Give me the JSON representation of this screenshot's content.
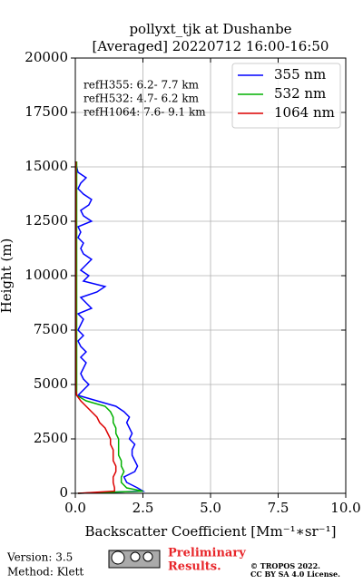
{
  "chart_data": {
    "type": "profile",
    "title": "pollyxt_tjk at Dushanbe",
    "subtitle": "[Averaged] 20220712 16:00-16:50",
    "xlabel": "Backscatter Coefficient [Mm⁻¹∗sr⁻¹]",
    "ylabel": "Height (m)",
    "annotations": [
      "refH355:  6.2- 7.7 km",
      "refH532:  4.7- 6.2 km",
      "refH1064:  7.6- 9.1 km"
    ],
    "xlim": [
      0,
      10
    ],
    "ylim": [
      0,
      20000
    ],
    "xticks": [
      {
        "value": 0,
        "label": "0.0"
      },
      2.5,
      {
        "value": 5,
        "label": "5.0"
      },
      7.5,
      {
        "value": 10,
        "label": "10.0"
      }
    ],
    "yticks": [
      0,
      2500,
      5000,
      7500,
      10000,
      12500,
      15000,
      17500,
      20000
    ],
    "grid": true,
    "legend": "upper right",
    "y": [
      0,
      100,
      250,
      500,
      750,
      1000,
      1250,
      1500,
      1750,
      2000,
      2250,
      2500,
      2750,
      3000,
      3250,
      3500,
      3750,
      4000,
      4250,
      4500,
      4750,
      5000,
      5250,
      5500,
      5750,
      6000,
      6250,
      6500,
      6750,
      7000,
      7250,
      7500,
      7750,
      8000,
      8250,
      8500,
      8750,
      9000,
      9250,
      9500,
      9750,
      10000,
      10250,
      10500,
      10750,
      11000,
      11250,
      11500,
      11750,
      12000,
      12250,
      12500,
      12750,
      13000,
      13250,
      13500,
      13750,
      14000,
      14250,
      14500,
      14750,
      15000,
      15250
    ],
    "series": [
      {
        "name": "355 nm",
        "color": "#0000ff",
        "values": [
          0.1,
          2.5,
          2.3,
          1.9,
          1.8,
          2.2,
          2.3,
          2.2,
          2.1,
          2.1,
          2.2,
          2.0,
          2.1,
          2.0,
          1.9,
          2.0,
          1.8,
          1.5,
          0.8,
          0.1,
          0.3,
          0.5,
          0.3,
          0.2,
          0.3,
          0.4,
          0.2,
          0.4,
          0.2,
          0.1,
          0.3,
          0.1,
          0.2,
          0.3,
          0.1,
          0.6,
          0.4,
          0.2,
          0.8,
          1.1,
          0.3,
          0.5,
          0.2,
          0.4,
          0.6,
          0.3,
          0.2,
          0.3,
          0.1,
          0.2,
          0.1,
          0.6,
          0.3,
          0.2,
          0.5,
          0.6,
          0.3,
          0.1,
          0.2,
          0.4,
          0.1,
          0.05,
          0
        ]
      },
      {
        "name": "532 nm",
        "color": "#00b000",
        "values": [
          0.1,
          2.5,
          1.9,
          1.7,
          1.7,
          1.8,
          1.7,
          1.7,
          1.6,
          1.6,
          1.6,
          1.6,
          1.5,
          1.5,
          1.4,
          1.4,
          1.3,
          1.1,
          0.4,
          0.05,
          0.05,
          0.05,
          0.05,
          0.05,
          0.05,
          0.05,
          0.05,
          0.05,
          0.05,
          0.05,
          0.05,
          0.05,
          0.05,
          0.05,
          0.05,
          0.05,
          0.05,
          0.05,
          0.05,
          0.05,
          0.05,
          0.05,
          0.05,
          0.05,
          0.05,
          0.05,
          0.05,
          0.05,
          0.05,
          0.05,
          0.05,
          0.05,
          0.05,
          0.05,
          0.05,
          0.05,
          0.05,
          0.05,
          0.05,
          0.05,
          0.05,
          0.05,
          0.05
        ]
      },
      {
        "name": "1064 nm",
        "color": "#dd0000",
        "values": [
          0.1,
          1.45,
          1.45,
          1.4,
          1.4,
          1.5,
          1.5,
          1.4,
          1.4,
          1.4,
          1.3,
          1.3,
          1.2,
          1.1,
          0.9,
          0.8,
          0.6,
          0.4,
          0.2,
          0.05,
          0.02,
          0.02,
          0.02,
          0.02,
          0.02,
          0.02,
          0.02,
          0.02,
          0.02,
          0.02,
          0.02,
          0.02,
          0.02,
          0.02,
          0.02,
          0.02,
          0.02,
          0.02,
          0.02,
          0.02,
          0.02,
          0.02,
          0.02,
          0.02,
          0.02,
          0.02,
          0.02,
          0.02,
          0.02,
          0.02,
          0.02,
          0.02,
          0.02,
          0.02,
          0.02,
          0.02,
          0.02,
          0.02,
          0.02,
          0.02,
          0.02,
          0.02,
          0.02
        ]
      }
    ]
  },
  "footer": {
    "version": "Version: 3.5",
    "method": "Method: Klett",
    "preliminary": [
      "Preliminary",
      "Results."
    ],
    "copyright": [
      "© TROPOS 2022.",
      "CC BY SA 4.0 License."
    ]
  }
}
